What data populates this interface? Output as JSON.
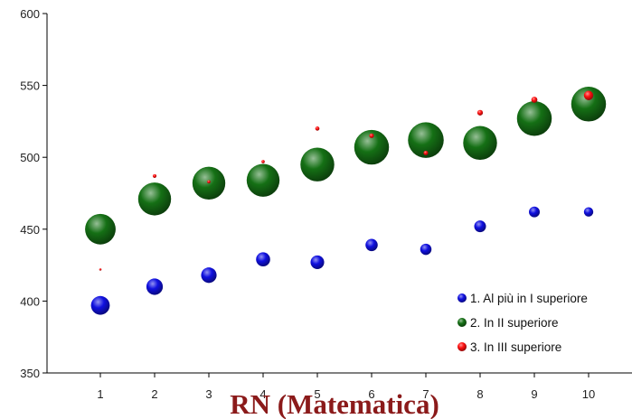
{
  "chart_data": {
    "type": "scatter",
    "title": "",
    "xlabel": "RN (Matematica)",
    "ylabel": "",
    "xlim": [
      0,
      11
    ],
    "ylim": [
      350,
      600
    ],
    "x_ticks": [
      1,
      2,
      3,
      4,
      5,
      6,
      7,
      8,
      9,
      10
    ],
    "y_ticks": [
      350,
      400,
      450,
      500,
      550,
      600
    ],
    "grid": false,
    "legend_position": "bottom-right",
    "series": [
      {
        "name": "1. Al più in I superiore",
        "color": "#1010e0",
        "x": [
          1,
          2,
          3,
          4,
          5,
          6,
          7,
          8,
          9,
          10
        ],
        "y": [
          397,
          410,
          418,
          429,
          427,
          439,
          436,
          452,
          462,
          462
        ],
        "size": [
          4.0,
          3.5,
          3.3,
          3.0,
          2.9,
          2.6,
          2.4,
          2.5,
          2.3,
          2.0
        ]
      },
      {
        "name": "2. In II superiore",
        "color": "#157015",
        "x": [
          1,
          2,
          3,
          4,
          5,
          6,
          7,
          8,
          9,
          10
        ],
        "y": [
          450,
          471,
          482,
          484,
          495,
          507,
          512,
          510,
          527,
          537
        ],
        "size": [
          6.5,
          7.0,
          7.0,
          7.0,
          7.2,
          7.4,
          7.6,
          7.2,
          7.4,
          7.4
        ]
      },
      {
        "name": "3. In III superiore",
        "color": "#ff1010",
        "x": [
          1,
          2,
          3,
          4,
          5,
          6,
          7,
          8,
          9,
          10
        ],
        "y": [
          422,
          487,
          483,
          497,
          520,
          515,
          503,
          531,
          540,
          543
        ],
        "size": [
          0.5,
          0.8,
          0.7,
          0.7,
          0.9,
          1.0,
          1.0,
          1.2,
          1.3,
          2.0
        ]
      }
    ]
  }
}
